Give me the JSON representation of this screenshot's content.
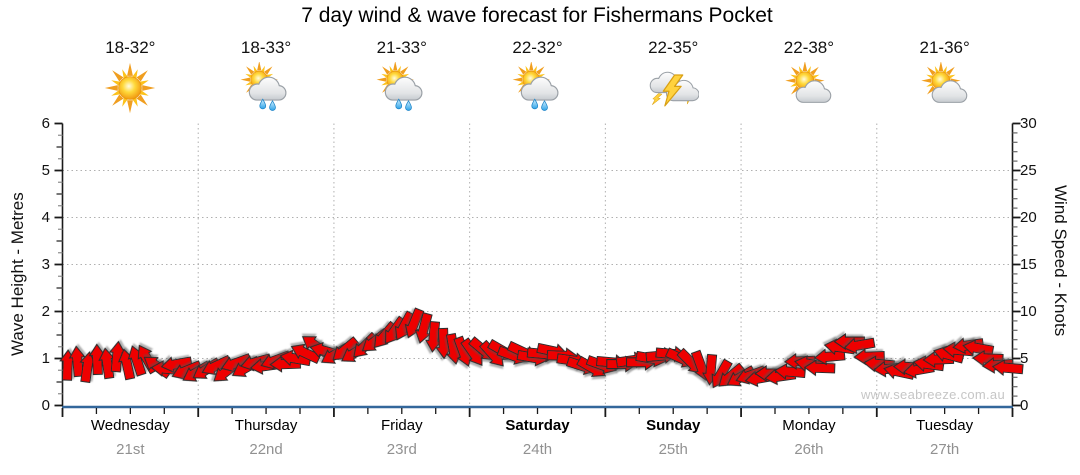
{
  "watermark": "www.seabreeze.com.au",
  "days": [
    {
      "name": "Wednesday",
      "date": "21st",
      "weekend": false,
      "temp": "18-32°",
      "icon": "sunny"
    },
    {
      "name": "Thursday",
      "date": "22nd",
      "weekend": false,
      "temp": "18-33°",
      "icon": "sun-cloud-rain"
    },
    {
      "name": "Friday",
      "date": "23rd",
      "weekend": false,
      "temp": "21-33°",
      "icon": "sun-cloud-rain"
    },
    {
      "name": "Saturday",
      "date": "24th",
      "weekend": true,
      "temp": "22-32°",
      "icon": "sun-cloud-rain"
    },
    {
      "name": "Sunday",
      "date": "25th",
      "weekend": true,
      "temp": "22-35°",
      "icon": "thunderstorm"
    },
    {
      "name": "Monday",
      "date": "26th",
      "weekend": false,
      "temp": "22-38°",
      "icon": "sun-cloud"
    },
    {
      "name": "Tuesday",
      "date": "27th",
      "weekend": false,
      "temp": "21-36°",
      "icon": "sun-cloud"
    }
  ],
  "colors": {
    "arrow_fill": "#ee0202",
    "arrow_stroke": "#2b2b2b",
    "x_axis_line": "#33679b",
    "grid": "#b0b0b0",
    "axis_black": "#1a1a1a",
    "minor_tick": "#8c8c8c",
    "date_gray": "#919191"
  },
  "chart_data": {
    "type": "wind-arrows-timeseries",
    "title": "7 day wind & wave forecast for Fishermans Pocket",
    "categories": [
      "Wednesday",
      "Thursday",
      "Friday",
      "Saturday",
      "Sunday",
      "Monday",
      "Tuesday"
    ],
    "hours_total": 168,
    "hours_per_day": 24,
    "left_axis": {
      "label": "Wave Height - Metres",
      "min": 0,
      "max": 6,
      "major_ticks": [
        0,
        1,
        2,
        3,
        4,
        5,
        6
      ],
      "minor_step": 0.25
    },
    "right_axis": {
      "label": "Wind Speed - Knots",
      "min": 0,
      "max": 30,
      "major_ticks": [
        0,
        5,
        10,
        15,
        20,
        25,
        30
      ],
      "minor_step": 1
    },
    "grid": {
      "h_lines_metres": [
        1,
        2,
        3,
        4,
        5
      ],
      "v_lines": "day-boundaries",
      "style": "dotted"
    },
    "x_minor_tick_hours": 6,
    "direction_convention": "degrees clockwise, 0 = arrow pointing right (east)",
    "arrow_unit": "knots",
    "arrows": [
      [
        0.9,
        4.3,
        272
      ],
      [
        2.65,
        4.7,
        265
      ],
      [
        4.4,
        4.1,
        278
      ],
      [
        6.15,
        4.9,
        268
      ],
      [
        7.9,
        4.5,
        262
      ],
      [
        9.65,
        5.2,
        275
      ],
      [
        11.4,
        4.4,
        258
      ],
      [
        13.15,
        4.8,
        252
      ],
      [
        14.9,
        5.0,
        240
      ],
      [
        16.65,
        4.2,
        215
      ],
      [
        18.4,
        3.9,
        185
      ],
      [
        20.15,
        4.4,
        170
      ],
      [
        21.9,
        3.7,
        158
      ],
      [
        23.65,
        3.5,
        150
      ],
      [
        25.4,
        3.8,
        148
      ],
      [
        27.15,
        4.2,
        155
      ],
      [
        28.9,
        3.6,
        142
      ],
      [
        30.65,
        4.5,
        160
      ],
      [
        32.4,
        4.0,
        150
      ],
      [
        34.15,
        4.6,
        165
      ],
      [
        35.9,
        4.2,
        172
      ],
      [
        37.65,
        4.8,
        160
      ],
      [
        39.4,
        4.4,
        178
      ],
      [
        41.15,
        5.0,
        190
      ],
      [
        42.9,
        5.6,
        205
      ],
      [
        44.65,
        6.4,
        215
      ],
      [
        46.4,
        5.8,
        195
      ],
      [
        48.15,
        5.4,
        150
      ],
      [
        49.9,
        5.9,
        140
      ],
      [
        51.65,
        5.6,
        148
      ],
      [
        53.4,
        6.3,
        135
      ],
      [
        55.15,
        6.8,
        142
      ],
      [
        56.9,
        7.4,
        130
      ],
      [
        58.65,
        7.9,
        125
      ],
      [
        60.4,
        8.4,
        118
      ],
      [
        62.15,
        8.7,
        112
      ],
      [
        63.9,
        8.2,
        105
      ],
      [
        65.65,
        7.3,
        95
      ],
      [
        67.4,
        6.6,
        88
      ],
      [
        69.15,
        6.0,
        80
      ],
      [
        70.9,
        5.7,
        70
      ],
      [
        72.65,
        5.6,
        55
      ],
      [
        74.4,
        5.9,
        40
      ],
      [
        76.15,
        5.4,
        48
      ],
      [
        77.9,
        5.8,
        30
      ],
      [
        79.65,
        5.3,
        20
      ],
      [
        81.4,
        5.7,
        25
      ],
      [
        83.15,
        5.1,
        10
      ],
      [
        84.9,
        5.5,
        5
      ],
      [
        86.65,
        5.8,
        12
      ],
      [
        88.4,
        5.3,
        2
      ],
      [
        90.15,
        4.8,
        8
      ],
      [
        91.9,
        4.2,
        18
      ],
      [
        93.65,
        4.0,
        30
      ],
      [
        95.4,
        4.3,
        20
      ],
      [
        97.15,
        4.6,
        5
      ],
      [
        98.9,
        4.4,
        0
      ],
      [
        100.65,
        4.8,
        352
      ],
      [
        102.4,
        4.6,
        0
      ],
      [
        104.15,
        5.0,
        10
      ],
      [
        105.9,
        5.3,
        355
      ],
      [
        107.65,
        5.5,
        5
      ],
      [
        109.4,
        5.0,
        25
      ],
      [
        111.15,
        4.6,
        45
      ],
      [
        112.9,
        4.2,
        70
      ],
      [
        114.65,
        3.8,
        95
      ],
      [
        116.4,
        3.3,
        120
      ],
      [
        118.15,
        3.1,
        140
      ],
      [
        119.9,
        3.0,
        150
      ],
      [
        121.65,
        3.2,
        160
      ],
      [
        123.4,
        2.9,
        170
      ],
      [
        125.15,
        3.4,
        180
      ],
      [
        126.9,
        3.1,
        172
      ],
      [
        128.65,
        3.6,
        185
      ],
      [
        130.4,
        4.7,
        178
      ],
      [
        132.15,
        4.4,
        190
      ],
      [
        133.9,
        4.0,
        182
      ],
      [
        135.65,
        5.2,
        175
      ],
      [
        137.4,
        6.2,
        188
      ],
      [
        139.15,
        6.8,
        180
      ],
      [
        140.9,
        6.4,
        170
      ],
      [
        142.65,
        5.2,
        178
      ],
      [
        144.4,
        4.4,
        185
      ],
      [
        146.15,
        3.9,
        175
      ],
      [
        147.9,
        3.6,
        192
      ],
      [
        149.65,
        4.1,
        182
      ],
      [
        151.4,
        3.8,
        170
      ],
      [
        153.15,
        4.4,
        188
      ],
      [
        154.9,
        4.9,
        178
      ],
      [
        156.65,
        5.4,
        195
      ],
      [
        158.4,
        5.9,
        185
      ],
      [
        160.15,
        6.4,
        172
      ],
      [
        161.9,
        6.1,
        190
      ],
      [
        163.65,
        5.0,
        182
      ],
      [
        165.4,
        4.3,
        176
      ],
      [
        167.15,
        4.0,
        185
      ]
    ]
  }
}
